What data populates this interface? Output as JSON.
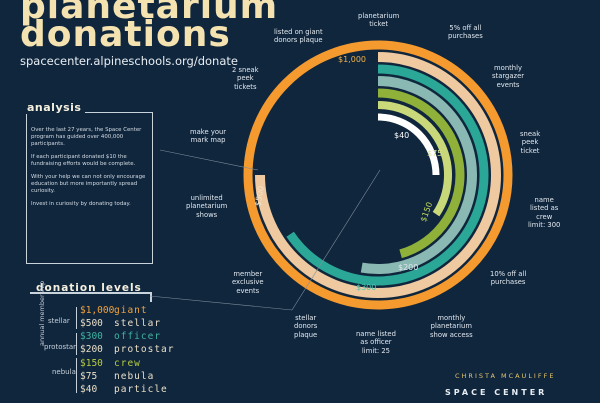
{
  "header": {
    "title_line1": "planetarium",
    "title_line2": "donations",
    "url": "spacecenter.alpineschools.org/donate"
  },
  "analysis": {
    "heading": "analysis",
    "paragraphs": [
      "Over the last 27 years, the Space Center program has guided over 400,000 participants.",
      "If each participant donated $10 the fundraising efforts would be complete.",
      "With your help we can not only encourage education but more importantly spread curiosity.",
      "Invest in curiosity by donating today."
    ]
  },
  "levels": {
    "heading": "donation levels",
    "side_label": "annual membership",
    "groups": [
      "stellar",
      "protostar",
      "nebula"
    ],
    "rows": [
      {
        "amount": "$1,000",
        "name": "giant",
        "color": "#f2a33a"
      },
      {
        "amount": "$500",
        "name": "stellar",
        "color": "#eadfc8"
      },
      {
        "amount": "$300",
        "name": "officer",
        "color": "#3fb3a1"
      },
      {
        "amount": "$200",
        "name": "protostar",
        "color": "#eadfc8"
      },
      {
        "amount": "$150",
        "name": "crew",
        "color": "#b7cc3f"
      },
      {
        "amount": "$75",
        "name": "nebula",
        "color": "#eadfc8"
      },
      {
        "amount": "$40",
        "name": "particle",
        "color": "#eadfc8"
      }
    ]
  },
  "rings": [
    {
      "amount": "$1,000",
      "color": "#f59a2e"
    },
    {
      "amount": "$500",
      "color": "#efc9a0"
    },
    {
      "amount": "$300",
      "color": "#2aa796"
    },
    {
      "amount": "$200",
      "color": "#8ab8b2"
    },
    {
      "amount": "$150",
      "color": "#8fb13a"
    },
    {
      "amount": "$75",
      "color": "#c9d97a"
    },
    {
      "amount": "$40",
      "color": "#ffffff"
    }
  ],
  "benefits": [
    "planetarium\nticket",
    "5% off all\npurchases",
    "monthly\nstargazer\nevents",
    "sneak\npeek\nticket",
    "name\nlisted as\ncrew\nlimit: 300",
    "10% off all\npurchases",
    "monthly\nplanetarium\nshow access",
    "name listed\nas officer\nlimit: 25",
    "stellar\ndonors\nplaque",
    "member\nexclusive\nevents",
    "unlimited\nplanetarium\nshows",
    "make your\nmark map",
    "2 sneak\npeek\ntickets",
    "listed on giant\ndonors plaque"
  ],
  "footer": {
    "logo_line1": "CHRISTA MCAULIFFE",
    "logo_line2": "SPACE CENTER"
  }
}
